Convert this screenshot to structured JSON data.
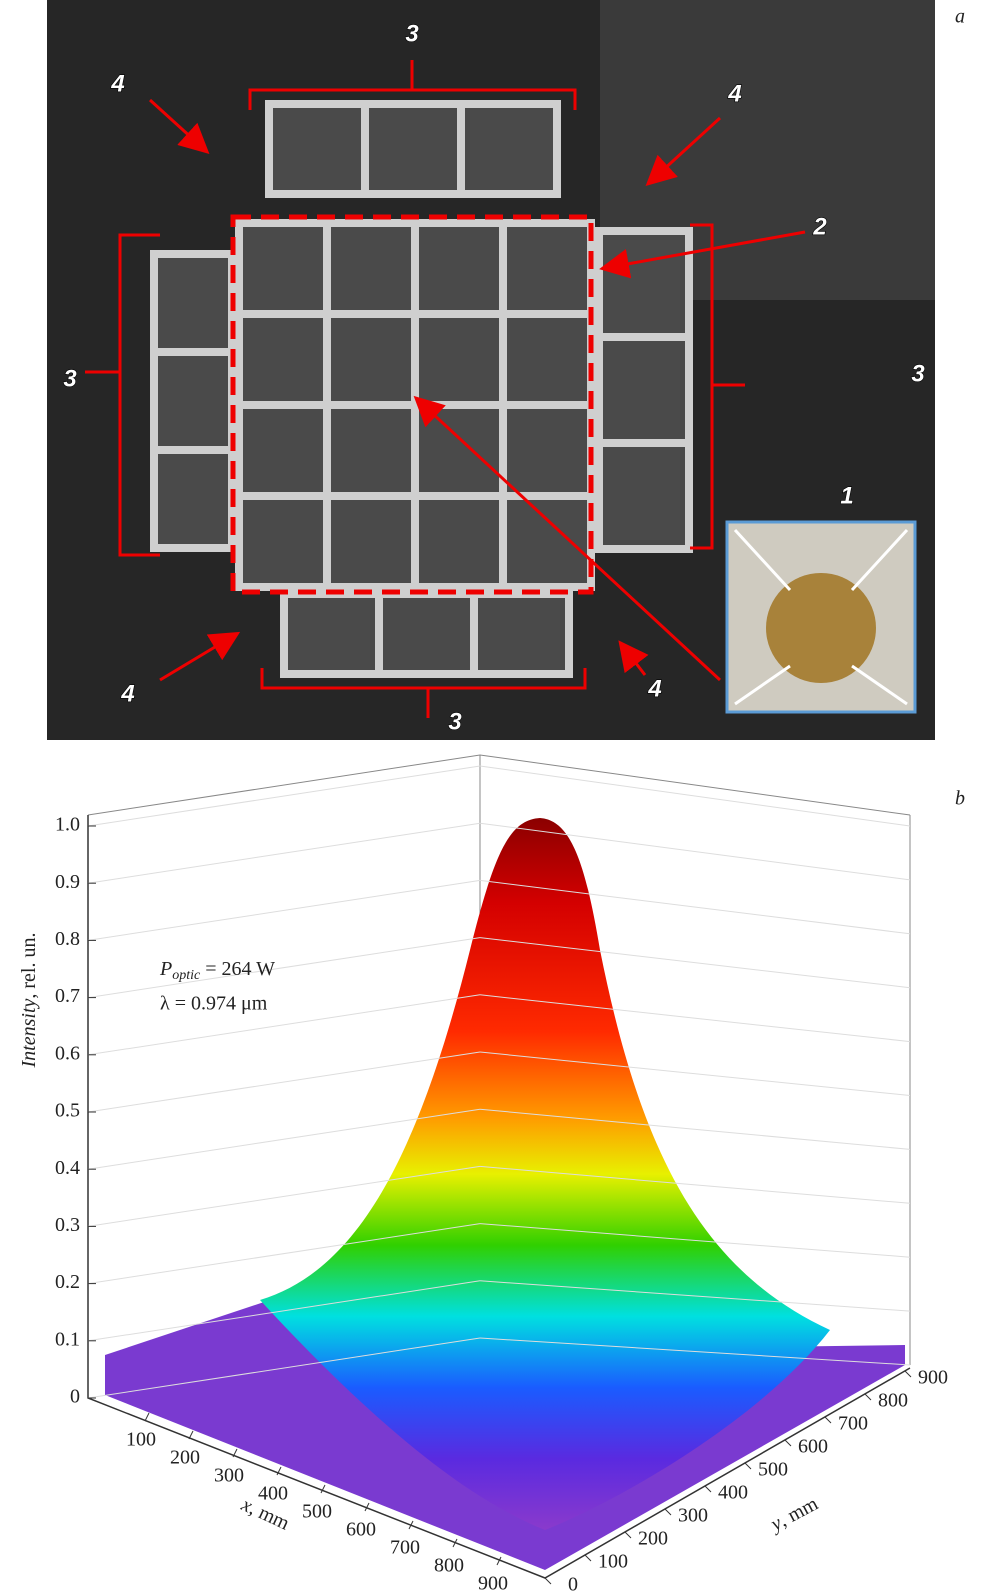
{
  "panel_a": {
    "letter": "a",
    "callouts": [
      "3",
      "4",
      "4",
      "2",
      "3",
      "3",
      "1",
      "4",
      "4",
      "3"
    ]
  },
  "panel_b": {
    "letter": "b",
    "z_axis": {
      "title": "Intensity",
      "unit": ", rel. un.",
      "ticks": [
        0,
        0.1,
        0.2,
        0.3,
        0.4,
        0.5,
        0.6,
        0.7,
        0.8,
        0.9,
        {
          "value": 1,
          "label": "1.0"
        }
      ]
    },
    "x_axis": {
      "title": "x",
      "unit": ", mm",
      "ticks": [
        100,
        200,
        300,
        400,
        500,
        600,
        700,
        800,
        900
      ]
    },
    "y_axis": {
      "title": "y",
      "unit": ", mm",
      "ticks": [
        0,
        100,
        200,
        300,
        400,
        500,
        600,
        700,
        800,
        900
      ]
    },
    "annotation": {
      "symbol": "P",
      "subscript": "optic",
      "power": " = 264 W",
      "wavelength": "λ = 0.974 μm"
    }
  }
}
